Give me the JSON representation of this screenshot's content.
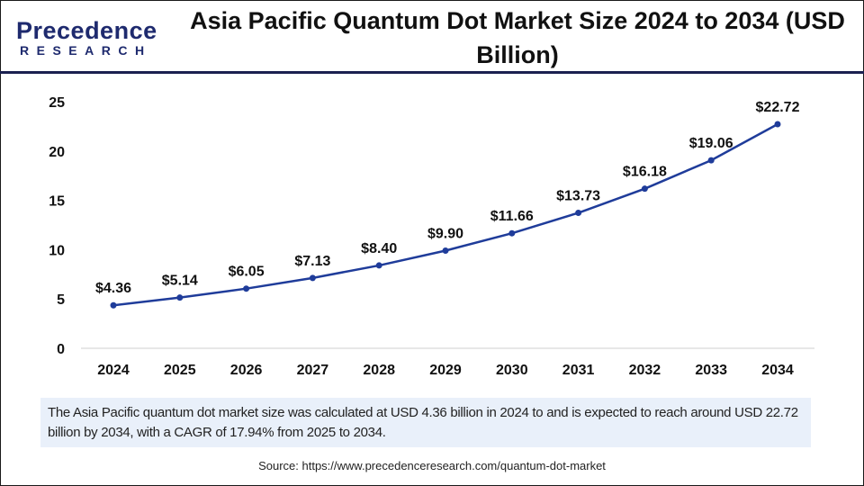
{
  "logo": {
    "line1": "Precedence",
    "line2": "RESEARCH"
  },
  "title": "Asia Pacific Quantum Dot Market Size 2024 to 2034 (USD Billion)",
  "chart_data": {
    "type": "line",
    "title": "Asia Pacific Quantum Dot Market Size 2024 to 2034 (USD Billion)",
    "categories": [
      "2024",
      "2025",
      "2026",
      "2027",
      "2028",
      "2029",
      "2030",
      "2031",
      "2032",
      "2033",
      "2034"
    ],
    "values": [
      4.36,
      5.14,
      6.05,
      7.13,
      8.4,
      9.9,
      11.66,
      13.73,
      16.18,
      19.06,
      22.72
    ],
    "data_labels": [
      "$4.36",
      "$5.14",
      "$6.05",
      "$7.13",
      "$8.40",
      "$9.90",
      "$11.66",
      "$13.73",
      "$16.18",
      "$19.06",
      "$22.72"
    ],
    "yticks": [
      0,
      5,
      10,
      15,
      20,
      25
    ],
    "ylim": [
      0,
      25
    ],
    "grid": false,
    "line_color": "#1f3c9a"
  },
  "summary": "The Asia Pacific quantum dot market size was calculated at USD 4.36 billion in 2024 to and is expected to reach around USD 22.72 billion by 2034, with a CAGR of 17.94% from 2025 to 2034.",
  "source": "Source: https://www.precedenceresearch.com/quantum-dot-market"
}
